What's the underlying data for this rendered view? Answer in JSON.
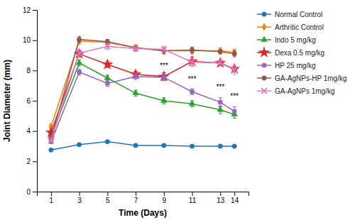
{
  "chart_data": {
    "type": "line",
    "xlabel": "Time (Days)",
    "ylabel": "Joint Diameter (mm)",
    "x": [
      1,
      3,
      5,
      7,
      9,
      11,
      13,
      14
    ],
    "xlim": [
      0,
      15
    ],
    "xticks": [
      1,
      3,
      5,
      7,
      9,
      11,
      13,
      14
    ],
    "ylim": [
      0,
      12
    ],
    "yticks": [
      0,
      2,
      4,
      6,
      8,
      10,
      12
    ],
    "grid": false,
    "legend": "right",
    "series": [
      {
        "name": "Normal Control",
        "marker": "circle",
        "values": [
          2.75,
          3.1,
          3.3,
          3.05,
          3.05,
          3.0,
          3.0,
          3.0
        ],
        "errors": [
          0.08,
          0.08,
          0.1,
          0.05,
          0.05,
          0.05,
          0.05,
          0.05
        ]
      },
      {
        "name": "Arthritic Control",
        "marker": "diamond",
        "values": [
          4.3,
          9.95,
          9.85,
          9.5,
          9.3,
          9.3,
          9.3,
          9.2
        ],
        "errors": [
          0.15,
          0.2,
          0.15,
          0.2,
          0.2,
          0.2,
          0.2,
          0.2
        ]
      },
      {
        "name": "Indo 5 mg/kg",
        "marker": "triangle",
        "values": [
          3.6,
          8.5,
          7.5,
          6.5,
          6.0,
          5.8,
          5.4,
          5.1
        ],
        "errors": [
          0.15,
          0.2,
          0.2,
          0.2,
          0.2,
          0.2,
          0.25,
          0.25
        ]
      },
      {
        "name": "Dexa 0.5 mg/kg",
        "marker": "star",
        "values": [
          3.9,
          9.1,
          8.4,
          7.75,
          7.6,
          8.6,
          8.5,
          8.1
        ],
        "errors": [
          0.15,
          0.2,
          0.2,
          0.2,
          0.25,
          0.3,
          0.2,
          0.2
        ]
      },
      {
        "name": "HP 25 mg/kg",
        "marker": "square",
        "values": [
          3.3,
          7.9,
          7.15,
          7.6,
          7.55,
          6.6,
          5.9,
          5.3
        ],
        "errors": [
          0.12,
          0.2,
          0.2,
          0.2,
          0.2,
          0.2,
          0.3,
          0.3
        ]
      },
      {
        "name": "GA-AgNPs-HP 1mg/kg",
        "marker": "circle",
        "values": [
          3.5,
          10.05,
          9.9,
          9.5,
          9.3,
          9.35,
          9.25,
          9.1
        ],
        "errors": [
          0.1,
          0.2,
          0.15,
          0.15,
          0.2,
          0.2,
          0.15,
          0.2
        ]
      },
      {
        "name": "GA-AgNPs 1mg/kg",
        "marker": "x",
        "values": [
          3.4,
          9.15,
          9.6,
          9.45,
          9.4,
          8.55,
          8.5,
          8.05
        ],
        "errors": [
          0.1,
          0.2,
          0.2,
          0.2,
          0.2,
          0.25,
          0.2,
          0.3
        ]
      }
    ],
    "annotations": [
      {
        "x": 9,
        "y": 8.1,
        "text": "***"
      },
      {
        "x": 11,
        "y": 7.2,
        "text": "***"
      },
      {
        "x": 13,
        "y": 6.7,
        "text": "***"
      },
      {
        "x": 14,
        "y": 6.1,
        "text": "***"
      }
    ]
  }
}
